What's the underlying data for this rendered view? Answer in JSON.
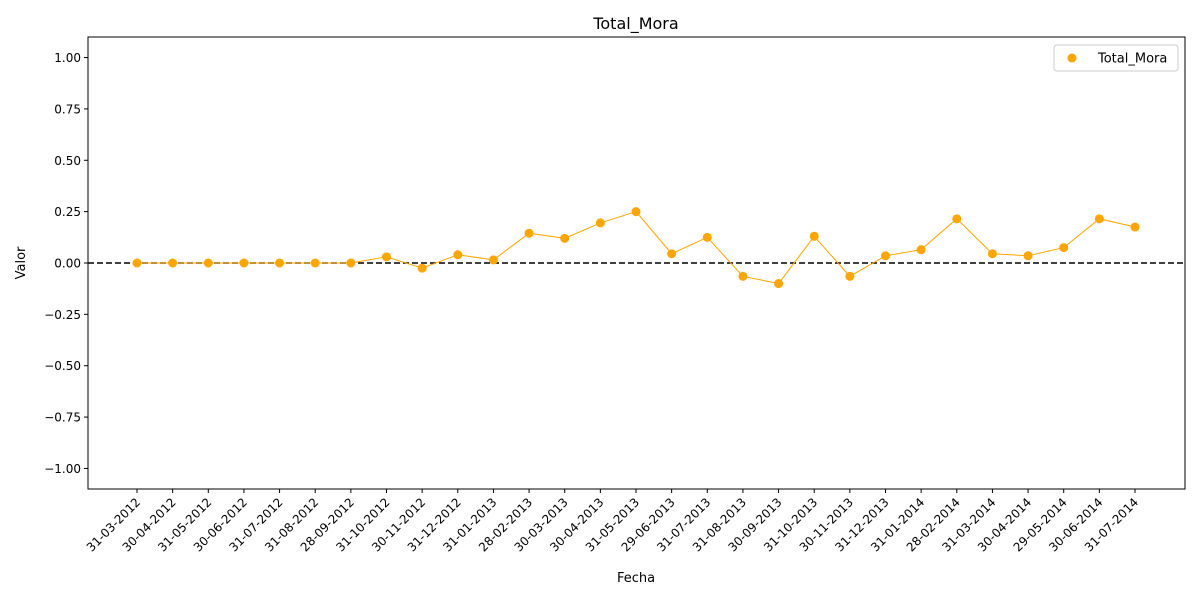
{
  "chart_data": {
    "type": "scatter",
    "title": "Total_Mora",
    "xlabel": "Fecha",
    "ylabel": "Valor",
    "ylim": [
      -1.1,
      1.1
    ],
    "yticks": [
      -1.0,
      -0.75,
      -0.5,
      -0.25,
      0.0,
      0.25,
      0.5,
      0.75,
      1.0
    ],
    "ytick_labels": [
      "−1.00",
      "−0.75",
      "−0.50",
      "−0.25",
      "0.00",
      "0.25",
      "0.50",
      "0.75",
      "1.00"
    ],
    "reference_line": 0,
    "legend_position": "top-right",
    "grid": false,
    "x": [
      "31-03-2012",
      "30-04-2012",
      "31-05-2012",
      "30-06-2012",
      "31-07-2012",
      "31-08-2012",
      "28-09-2012",
      "31-10-2012",
      "30-11-2012",
      "31-12-2012",
      "31-01-2013",
      "28-02-2013",
      "30-03-2013",
      "30-04-2013",
      "31-05-2013",
      "29-06-2013",
      "31-07-2013",
      "31-08-2013",
      "30-09-2013",
      "31-10-2013",
      "30-11-2013",
      "31-12-2013",
      "31-01-2014",
      "28-02-2014",
      "31-03-2014",
      "30-04-2014",
      "29-05-2014",
      "30-06-2014",
      "31-07-2014"
    ],
    "series": [
      {
        "name": "Total_Mora",
        "color": "#ffa500",
        "values": [
          0.0,
          0.0,
          0.0,
          0.0,
          0.0,
          0.0,
          0.0,
          0.03,
          -0.025,
          0.04,
          0.015,
          0.145,
          0.12,
          0.195,
          0.25,
          0.045,
          0.125,
          -0.065,
          -0.1,
          0.13,
          -0.065,
          0.035,
          0.065,
          0.215,
          0.045,
          0.035,
          0.075,
          0.215,
          0.175
        ]
      }
    ]
  }
}
